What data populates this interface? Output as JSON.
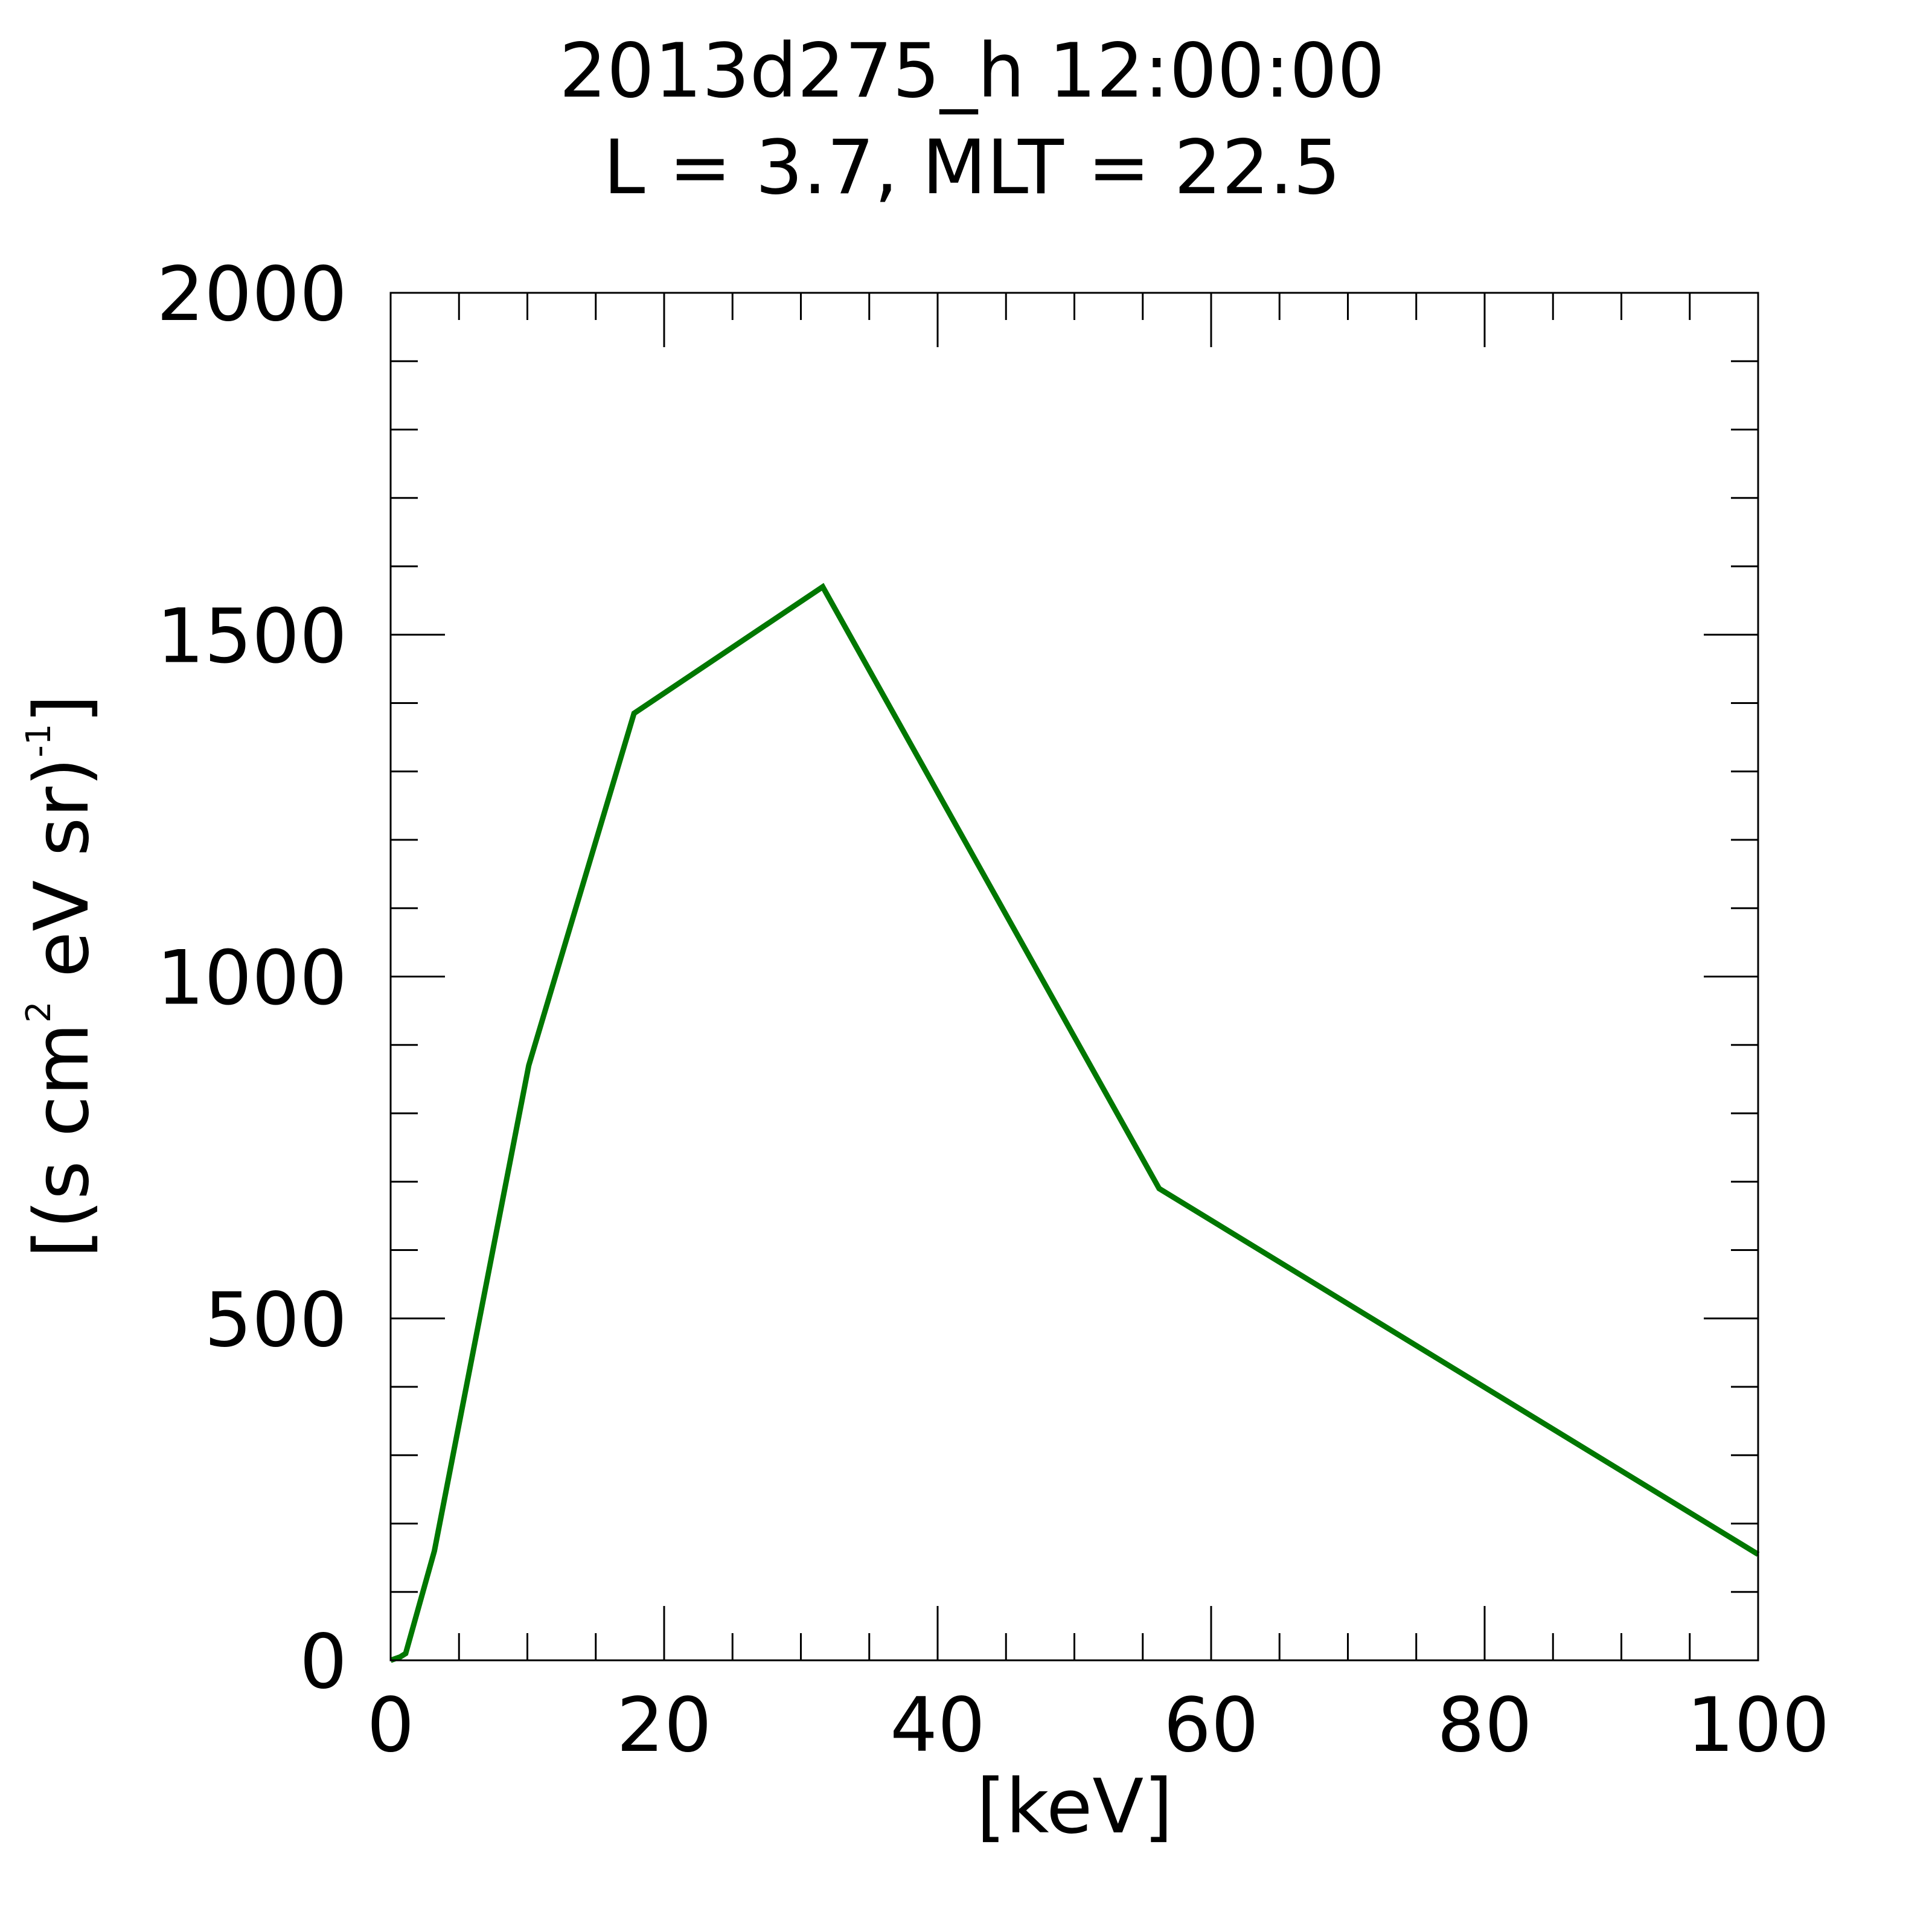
{
  "chart_data": {
    "type": "line",
    "title_lines": [
      "2013d275_h  12:00:00",
      "L = 3.7, MLT = 22.5"
    ],
    "xlabel": "[keV]",
    "ylabel": {
      "part1": "[(s cm",
      "sup1": "2",
      "part2": " eV sr)",
      "sup2": "-1",
      "part3": "]"
    },
    "xlim": [
      0,
      100
    ],
    "ylim": [
      0,
      2000
    ],
    "x_ticks": [
      "0",
      "20",
      "40",
      "60",
      "80",
      "100"
    ],
    "y_ticks": [
      "0",
      "500",
      "1000",
      "1500",
      "2000"
    ],
    "x_major_step": 20,
    "x_minor_step": 5,
    "y_major_step": 500,
    "y_minor_step": 100,
    "grid": false,
    "series": [
      {
        "color": "#007700",
        "x": [
          0,
          0.7,
          1.1,
          3.2,
          10.1,
          17.8,
          31.6,
          56.2,
          100
        ],
        "y": [
          0,
          5,
          10,
          160,
          870,
          1385,
          1570,
          690,
          155
        ]
      }
    ]
  }
}
